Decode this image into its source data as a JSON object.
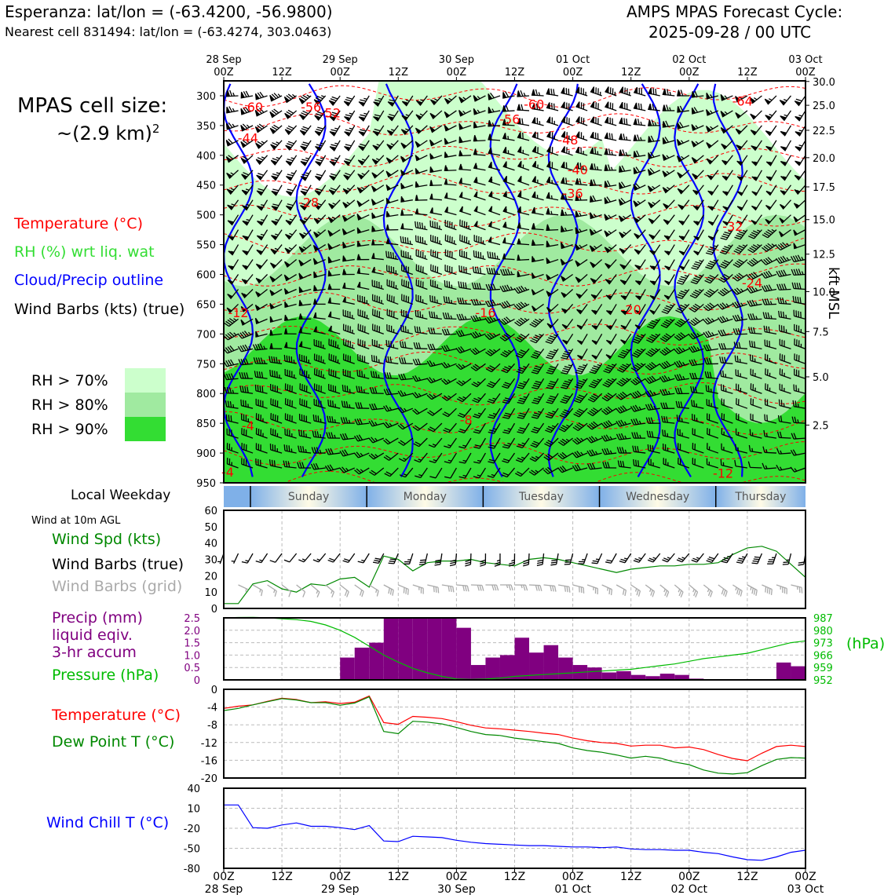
{
  "header": {
    "location": "Esperanza: lat/lon = (-63.4200, -56.9800)",
    "nearest_cell": "Nearest cell 831494: lat/lon = (-63.4274, 303.0463)",
    "cycle_title": "AMPS MPAS Forecast Cycle:",
    "cycle_date": "2025-09-28 / 00 UTC"
  },
  "cell_size": {
    "line1": "MPAS cell size:",
    "line2_prefix": "~(2.9 km)",
    "line2_sup": "2"
  },
  "legend_upper": {
    "temperature": "Temperature (°C)",
    "rh": "RH (%) wrt liq. wat",
    "cloud": "Cloud/Precip outline",
    "barbs": "Wind Barbs (kts) (true)",
    "rh70": "RH > 70%",
    "rh80": "RH > 80%",
    "rh90": "RH > 90%"
  },
  "legend_wind": {
    "weekday": "Local Weekday",
    "subtitle": "Wind at 10m AGL",
    "spd": "Wind Spd (kts)",
    "barbs_true": "Wind Barbs (true)",
    "barbs_grid": "Wind Barbs (grid)"
  },
  "legend_precip": {
    "line1": "Precip (mm)",
    "line2": "liquid eqiv.",
    "line3": "3-hr accum",
    "pressure": "Pressure (hPa)",
    "hpa_unit": "(hPa)"
  },
  "legend_temp": {
    "temp": "Temperature (°C)",
    "dew": "Dew Point T (°C)"
  },
  "legend_chill": {
    "chill": "Wind Chill T (°C)"
  },
  "right_axis_label": "kft MSL",
  "colors": {
    "temp": "#ff0000",
    "rh_green": "#33dd33",
    "cloud": "#0000ff",
    "precip": "#800080",
    "pressure": "#00bb00",
    "dew": "#008800",
    "rh70": "#ccffcc",
    "rh80": "#a0eaa0",
    "rh90": "#33dd33"
  },
  "chart_data": [
    {
      "type": "heatmap",
      "title": "Time-height cross section",
      "x_hours": [
        0,
        12,
        24,
        36,
        48,
        60,
        72,
        84,
        96,
        108,
        120
      ],
      "top_labels_line1": [
        "28 Sep",
        "",
        "29 Sep",
        "",
        "30 Sep",
        "",
        "01 Oct",
        "",
        "02 Oct",
        "",
        "03 Oct"
      ],
      "top_labels_line2": [
        "00Z",
        "12Z",
        "00Z",
        "12Z",
        "00Z",
        "12Z",
        "00Z",
        "12Z",
        "00Z",
        "12Z",
        "00Z"
      ],
      "pressure_levels_hpa": [
        300,
        350,
        400,
        450,
        500,
        550,
        600,
        650,
        700,
        750,
        800,
        850,
        900,
        950
      ],
      "ylim_hpa": [
        950,
        275
      ],
      "height_kft_ticks": [
        {
          "label": "30.0",
          "hpa": 276
        },
        {
          "label": "25.0",
          "hpa": 316
        },
        {
          "label": "22.5",
          "hpa": 358
        },
        {
          "label": "20.0",
          "hpa": 404
        },
        {
          "label": "17.5",
          "hpa": 453
        },
        {
          "label": "15.0",
          "hpa": 508
        },
        {
          "label": "12.5",
          "hpa": 566
        },
        {
          "label": "10.0",
          "hpa": 629
        },
        {
          "label": "7.5",
          "hpa": 696
        },
        {
          "label": "5.0",
          "hpa": 772
        },
        {
          "label": "2.5",
          "hpa": 853
        }
      ],
      "temperature_labels": [
        {
          "text": "-60",
          "x": 6,
          "p": 320
        },
        {
          "text": "-56",
          "x": 18,
          "p": 320
        },
        {
          "text": "-52",
          "x": 22,
          "p": 330
        },
        {
          "text": "-60",
          "x": 64,
          "p": 315
        },
        {
          "text": "-56",
          "x": 59,
          "p": 340
        },
        {
          "text": "-64",
          "x": 107,
          "p": 310
        },
        {
          "text": "-44",
          "x": 5,
          "p": 372
        },
        {
          "text": "-48",
          "x": 71,
          "p": 375
        },
        {
          "text": "-40",
          "x": 73,
          "p": 425
        },
        {
          "text": "-28",
          "x": 17.5,
          "p": 480
        },
        {
          "text": "-36",
          "x": 72,
          "p": 465
        },
        {
          "text": "-32",
          "x": 105,
          "p": 520
        },
        {
          "text": "-24",
          "x": 109,
          "p": 615
        },
        {
          "text": "-20",
          "x": 84,
          "p": 660
        },
        {
          "text": "-16",
          "x": 54,
          "p": 665
        },
        {
          "text": "-12",
          "x": 3,
          "p": 665
        },
        {
          "text": "-8",
          "x": 50,
          "p": 845
        },
        {
          "text": "-4",
          "x": 5,
          "p": 855
        },
        {
          "text": "-12",
          "x": 103,
          "p": 935
        },
        {
          "text": "-4",
          "x": 0.8,
          "p": 933
        }
      ]
    },
    {
      "type": "line",
      "title": "Wind at 10m AGL",
      "x_hours": [
        0,
        3,
        6,
        9,
        12,
        15,
        18,
        21,
        24,
        27,
        30,
        33,
        36,
        39,
        42,
        45,
        48,
        51,
        54,
        57,
        60,
        63,
        66,
        69,
        72,
        75,
        78,
        81,
        84,
        87,
        90,
        93,
        96,
        99,
        102,
        105,
        108,
        111,
        114,
        117,
        120
      ],
      "series": [
        {
          "name": "Wind Spd (kts)",
          "values": [
            3,
            3,
            15,
            17,
            12,
            10,
            15,
            14,
            18,
            19,
            13,
            32,
            30,
            23,
            28,
            29,
            29,
            30,
            28,
            27,
            26,
            30,
            31,
            30,
            28,
            26,
            24,
            22,
            24,
            25,
            26,
            26,
            27,
            27,
            28,
            33,
            37,
            38,
            35,
            27,
            19
          ]
        }
      ],
      "ylim": [
        0,
        60
      ],
      "yticks": [
        "60",
        "50",
        "40",
        "30",
        "20",
        "10",
        "0"
      ],
      "weekdays": [
        "Sunday",
        "Monday",
        "Tuesday",
        "Wednesday",
        "Thursday"
      ]
    },
    {
      "type": "bar",
      "title": "Precip (mm) 3-hr accum and Pressure",
      "bar_x_hours": [
        24,
        27,
        30,
        33,
        36,
        39,
        42,
        45,
        48,
        51,
        54,
        57,
        60,
        63,
        66,
        69,
        72,
        75,
        78,
        81,
        84,
        87,
        90,
        93,
        96,
        99,
        102,
        105,
        108,
        111,
        114,
        117
      ],
      "precip_mm": [
        0.9,
        1.3,
        1.5,
        2.6,
        2.6,
        2.6,
        2.6,
        2.6,
        2.1,
        0.6,
        0.9,
        1.0,
        1.7,
        1.1,
        1.4,
        0.9,
        0.6,
        0.5,
        0.3,
        0.35,
        0.2,
        0.15,
        0.25,
        0.2,
        0.05,
        0,
        0,
        0,
        0,
        0,
        0.7,
        0.55
      ],
      "precip_ylim": [
        0,
        2.5
      ],
      "precip_yticks": [
        "2.5",
        "2.0",
        "1.5",
        "1.0",
        "0.5",
        "0"
      ],
      "pressure_x_hours": [
        0,
        3,
        6,
        9,
        12,
        15,
        18,
        21,
        24,
        27,
        30,
        33,
        36,
        39,
        42,
        45,
        48,
        51,
        54,
        57,
        60,
        63,
        66,
        69,
        72,
        75,
        78,
        81,
        84,
        87,
        90,
        93,
        96,
        99,
        102,
        105,
        108,
        111,
        114,
        117,
        120
      ],
      "pressure_hpa": [
        987,
        987.2,
        987.3,
        987.1,
        986.5,
        986,
        985,
        983,
        980,
        976,
        971,
        966,
        962,
        958.5,
        956,
        954,
        952.5,
        952.3,
        952.5,
        953,
        954,
        954.5,
        955,
        955.5,
        956,
        956.5,
        957,
        957.5,
        958,
        959,
        960,
        961,
        962.5,
        964,
        965,
        966,
        967,
        969,
        971,
        973,
        974
      ],
      "pressure_ylim": [
        952,
        987
      ],
      "pressure_yticks": [
        "987",
        "980",
        "973",
        "966",
        "959",
        "952"
      ]
    },
    {
      "type": "line",
      "title": "Temperature and Dew Point",
      "x_hours": [
        0,
        3,
        6,
        9,
        12,
        15,
        18,
        21,
        24,
        27,
        30,
        33,
        36,
        39,
        42,
        45,
        48,
        51,
        54,
        57,
        60,
        63,
        66,
        69,
        72,
        75,
        78,
        81,
        84,
        87,
        90,
        93,
        96,
        99,
        102,
        105,
        108,
        111,
        114,
        117,
        120
      ],
      "series": [
        {
          "name": "Temperature (°C)",
          "values": [
            -4.3,
            -3.8,
            -3.5,
            -2.7,
            -2.0,
            -2.3,
            -3.0,
            -2.8,
            -3.2,
            -2.9,
            -1.5,
            -7.5,
            -7.9,
            -6.1,
            -6.3,
            -6.6,
            -7.3,
            -8.1,
            -8.7,
            -8.9,
            -9.2,
            -9.5,
            -9.9,
            -10.2,
            -11.0,
            -11.6,
            -12.0,
            -12.2,
            -12.8,
            -12.6,
            -12.6,
            -13.2,
            -13.0,
            -13.6,
            -14.7,
            -15.6,
            -16.1,
            -14.4,
            -12.9,
            -12.6,
            -12.9
          ]
        },
        {
          "name": "Dew Point T (°C)",
          "values": [
            -4.8,
            -4.3,
            -3.5,
            -2.8,
            -2.1,
            -2.4,
            -3.0,
            -3.0,
            -3.6,
            -3.1,
            -1.7,
            -9.5,
            -10.0,
            -7.2,
            -7.4,
            -7.8,
            -8.6,
            -9.5,
            -10.2,
            -10.4,
            -11.0,
            -11.4,
            -11.8,
            -12.2,
            -13.2,
            -13.8,
            -14.2,
            -14.8,
            -15.5,
            -15.1,
            -15.5,
            -16.4,
            -17.0,
            -18.2,
            -18.9,
            -19.1,
            -18.8,
            -17.2,
            -15.8,
            -15.4,
            -15.5
          ]
        }
      ],
      "ylim": [
        -20,
        0
      ],
      "yticks": [
        "0",
        "-4",
        "-8",
        "-12",
        "-16",
        "-20"
      ]
    },
    {
      "type": "line",
      "title": "Wind Chill",
      "x_hours": [
        0,
        3,
        6,
        9,
        12,
        15,
        18,
        21,
        24,
        27,
        30,
        33,
        36,
        39,
        42,
        45,
        48,
        51,
        54,
        57,
        60,
        63,
        66,
        69,
        72,
        75,
        78,
        81,
        84,
        87,
        90,
        93,
        96,
        99,
        102,
        105,
        108,
        111,
        114,
        117,
        120
      ],
      "series": [
        {
          "name": "Wind Chill T (°C)",
          "values": [
            15,
            15,
            -19,
            -20,
            -15,
            -12,
            -17,
            -17,
            -19,
            -22,
            -16,
            -39,
            -40,
            -32,
            -33,
            -34,
            -38,
            -41,
            -43,
            -44,
            -45,
            -46,
            -46,
            -47,
            -48,
            -48,
            -49,
            -48,
            -51,
            -52,
            -52,
            -53,
            -53,
            -56,
            -58,
            -63,
            -67,
            -68,
            -63,
            -56,
            -53
          ]
        }
      ],
      "ylim": [
        -80,
        40
      ],
      "yticks": [
        "40",
        "10",
        "-20",
        "-50",
        "-80"
      ],
      "bottom_labels_line1": [
        "00Z",
        "12Z",
        "00Z",
        "12Z",
        "00Z",
        "12Z",
        "00Z",
        "12Z",
        "00Z",
        "12Z",
        "00Z"
      ],
      "bottom_labels_line2": [
        "28 Sep",
        "",
        "29 Sep",
        "",
        "30 Sep",
        "",
        "01 Oct",
        "",
        "02 Oct",
        "",
        "03 Oct"
      ]
    }
  ]
}
